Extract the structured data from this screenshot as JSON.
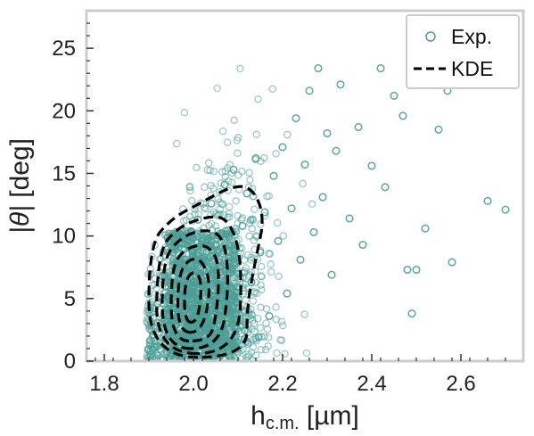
{
  "chart_data": {
    "type": "scatter",
    "title": "",
    "xlabel_main": "h",
    "xlabel_sub": "c.m.",
    "xlabel_unit": " [µm]",
    "ylabel_math": "|θ|",
    "ylabel_unit": " [deg]",
    "xlim": [
      1.76,
      2.74
    ],
    "ylim": [
      0,
      28
    ],
    "xticks": [
      1.8,
      2.0,
      2.2,
      2.4,
      2.6
    ],
    "xtick_labels": [
      "1.8",
      "2.0",
      "2.2",
      "2.4",
      "2.6"
    ],
    "yticks": [
      0,
      5,
      10,
      15,
      20,
      25
    ],
    "ytick_labels": [
      "0",
      "5",
      "10",
      "15",
      "20",
      "25"
    ],
    "grid": false,
    "legend_position": "top-right",
    "colors": {
      "points": "#4a9e96",
      "kde": "#000000",
      "frame": "#cccccc"
    },
    "series": [
      {
        "name": "Exp.",
        "marker": "open-circle",
        "points": [
          [
            1.91,
            2.1
          ],
          [
            1.92,
            4.6
          ],
          [
            1.93,
            6.8
          ],
          [
            1.94,
            8.9
          ],
          [
            1.95,
            3.3
          ],
          [
            1.96,
            7.2
          ],
          [
            1.97,
            10.1
          ],
          [
            1.98,
            5.5
          ],
          [
            1.99,
            1.2
          ],
          [
            2.0,
            8.4
          ],
          [
            2.01,
            11.3
          ],
          [
            2.02,
            3.9
          ],
          [
            2.03,
            6.1
          ],
          [
            2.04,
            12.6
          ],
          [
            2.05,
            9.2
          ],
          [
            2.06,
            2.8
          ],
          [
            2.07,
            14.1
          ],
          [
            2.08,
            7.5
          ],
          [
            2.09,
            15.3
          ],
          [
            2.1,
            4.2
          ],
          [
            2.11,
            10.8
          ],
          [
            2.12,
            13.4
          ],
          [
            2.13,
            6.3
          ],
          [
            2.14,
            16.2
          ],
          [
            2.15,
            8.7
          ],
          [
            2.16,
            11.9
          ],
          [
            2.17,
            3.6
          ],
          [
            2.18,
            14.8
          ],
          [
            2.19,
            9.6
          ],
          [
            2.2,
            17.1
          ],
          [
            2.21,
            5.4
          ],
          [
            2.22,
            12.2
          ],
          [
            2.23,
            19.4
          ],
          [
            2.24,
            8.1
          ],
          [
            2.25,
            15.7
          ],
          [
            2.26,
            21.6
          ],
          [
            2.27,
            10.3
          ],
          [
            2.28,
            23.4
          ],
          [
            2.29,
            13.1
          ],
          [
            2.3,
            18.2
          ],
          [
            2.31,
            6.9
          ],
          [
            2.32,
            16.8
          ],
          [
            2.33,
            22.1
          ],
          [
            2.35,
            11.4
          ],
          [
            2.37,
            18.7
          ],
          [
            2.38,
            9.3
          ],
          [
            2.4,
            15.6
          ],
          [
            2.42,
            23.4
          ],
          [
            2.43,
            13.9
          ],
          [
            2.45,
            21.2
          ],
          [
            2.47,
            19.6
          ],
          [
            2.48,
            7.3
          ],
          [
            2.49,
            3.8
          ],
          [
            2.5,
            7.3
          ],
          [
            2.52,
            10.6
          ],
          [
            2.55,
            18.5
          ],
          [
            2.57,
            21.6
          ],
          [
            2.58,
            7.9
          ],
          [
            2.66,
            12.8
          ],
          [
            2.7,
            12.1
          ]
        ]
      },
      {
        "name": "KDE",
        "line_style": "dashed",
        "contours": [
          [
            [
              1.9,
              0.3
            ],
            [
              1.9,
              9.2
            ],
            [
              1.95,
              11.4
            ],
            [
              2.02,
              12.7
            ],
            [
              2.08,
              13.9
            ],
            [
              2.13,
              14.0
            ],
            [
              2.16,
              11.6
            ],
            [
              2.14,
              8.2
            ],
            [
              2.12,
              4.5
            ],
            [
              2.12,
              0.3
            ]
          ],
          [
            [
              1.915,
              0.6
            ],
            [
              1.92,
              8.6
            ],
            [
              1.96,
              10.6
            ],
            [
              2.03,
              11.6
            ],
            [
              2.08,
              11.4
            ],
            [
              2.11,
              8.0
            ],
            [
              2.1,
              0.6
            ]
          ],
          [
            [
              1.93,
              1.0
            ],
            [
              1.93,
              8.0
            ],
            [
              1.97,
              9.9
            ],
            [
              2.03,
              10.6
            ],
            [
              2.07,
              9.8
            ],
            [
              2.08,
              6.0
            ],
            [
              2.06,
              1.0
            ]
          ],
          [
            [
              1.95,
              1.6
            ],
            [
              1.95,
              7.4
            ],
            [
              1.98,
              9.0
            ],
            [
              2.03,
              9.4
            ],
            [
              2.06,
              7.8
            ],
            [
              2.05,
              3.0
            ],
            [
              2.03,
              1.6
            ]
          ],
          [
            [
              1.965,
              2.3
            ],
            [
              1.965,
              6.8
            ],
            [
              1.99,
              8.2
            ],
            [
              2.02,
              8.1
            ],
            [
              2.04,
              6.0
            ],
            [
              2.02,
              2.3
            ]
          ],
          [
            [
              1.98,
              3.1
            ],
            [
              1.98,
              6.3
            ],
            [
              2.0,
              7.3
            ],
            [
              2.02,
              6.4
            ],
            [
              2.01,
              3.1
            ]
          ]
        ]
      }
    ]
  }
}
